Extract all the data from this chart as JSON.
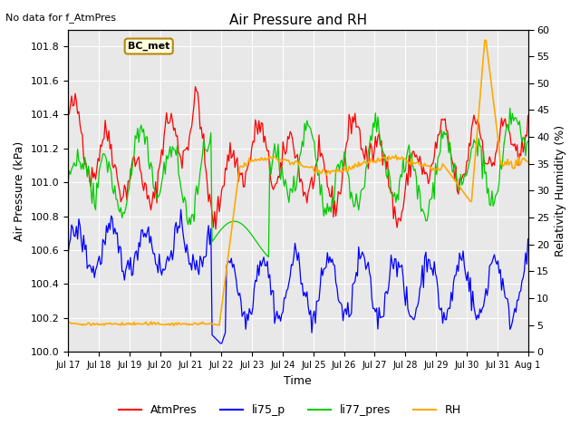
{
  "title": "Air Pressure and RH",
  "top_note": "No data for f_AtmPres",
  "station_label": "BC_met",
  "ylabel_left": "Air Pressure (kPa)",
  "ylabel_right": "Relativity Humidity (%)",
  "xlabel": "Time",
  "ylim_left": [
    100.0,
    101.9
  ],
  "ylim_right": [
    0,
    60
  ],
  "yticks_left": [
    100.0,
    100.2,
    100.4,
    100.6,
    100.8,
    101.0,
    101.2,
    101.4,
    101.6,
    101.8
  ],
  "yticks_right": [
    0,
    5,
    10,
    15,
    20,
    25,
    30,
    35,
    40,
    45,
    50,
    55,
    60
  ],
  "xtick_labels": [
    "Jul 17",
    "Jul 18",
    "Jul 19",
    "Jul 20",
    "Jul 21",
    "Jul 22",
    "Jul 23",
    "Jul 24",
    "Jul 25",
    "Jul 26",
    "Jul 27",
    "Jul 28",
    "Jul 29",
    "Jul 30",
    "Jul 31",
    "Aug 1"
  ],
  "colors": {
    "AtmPres": "#ff0000",
    "li75_p": "#0000ff",
    "li77_pres": "#00cc00",
    "RH": "#ffaa00"
  },
  "legend": [
    "AtmPres",
    "li75_p",
    "li77_pres",
    "RH"
  ],
  "bg_color": "#e8e8e8"
}
